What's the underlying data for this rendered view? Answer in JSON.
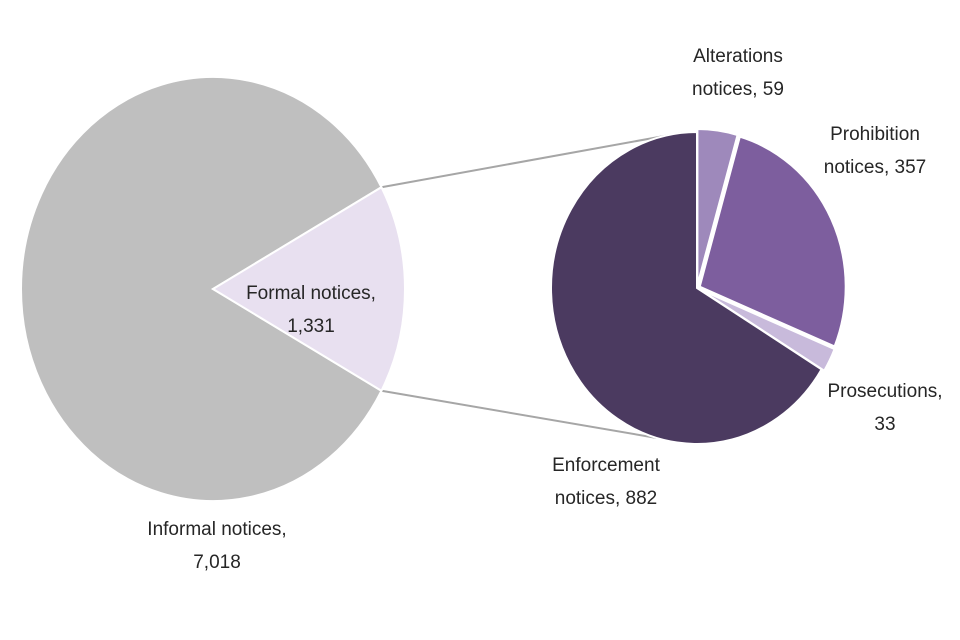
{
  "chart_data": [
    {
      "type": "pie",
      "slices": [
        {
          "label": "Informal notices,",
          "value_text": "7,018",
          "value": 7018,
          "color": "#bfbfbf"
        },
        {
          "label": "Formal notices,",
          "value_text": "1,331",
          "value": 1331,
          "color": "#e8e0f0"
        }
      ]
    },
    {
      "type": "pie",
      "slices": [
        {
          "label": "Alterations",
          "value_text": "notices, 59",
          "value": 59,
          "color": "#9e89bb"
        },
        {
          "label": "Prohibition",
          "value_text": "notices, 357",
          "value": 357,
          "color": "#7d5e9e"
        },
        {
          "label": "Prosecutions,",
          "value_text": "33",
          "value": 33,
          "color": "#c8badb"
        },
        {
          "label": "Enforcement",
          "value_text": "notices, 882",
          "value": 882,
          "color": "#4b3a60"
        }
      ]
    }
  ]
}
